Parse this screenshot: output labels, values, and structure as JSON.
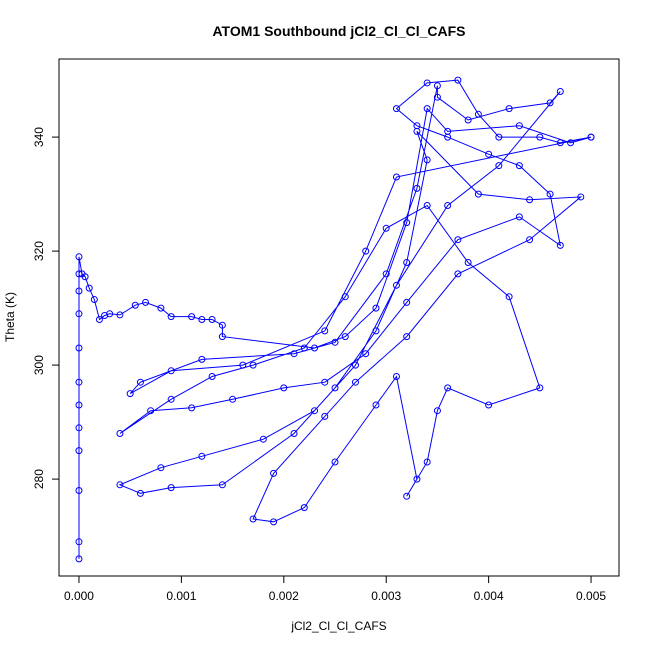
{
  "chart_data": {
    "type": "line",
    "markers": true,
    "title": "ATOM1 Southbound jCl2_Cl_Cl_CAFS",
    "x_label": "jCl2_Cl_Cl_CAFS",
    "y_label": "Theta (K)",
    "color": "#0000ff",
    "xlim": [
      -0.000195,
      0.005273
    ],
    "ylim": [
      263,
      353.7
    ],
    "xticks": [
      {
        "value": 0,
        "label": "0.000"
      },
      {
        "value": 0.001,
        "label": "0.001"
      },
      {
        "value": 0.002,
        "label": "0.002"
      },
      {
        "value": 0.003,
        "label": "0.003"
      },
      {
        "value": 0.004,
        "label": "0.004"
      },
      {
        "value": 0.005,
        "label": "0.005"
      }
    ],
    "yticks": [
      280,
      300,
      320,
      340
    ],
    "x": [
      0,
      0,
      0,
      0,
      0,
      0,
      0,
      0,
      0,
      0,
      0,
      0,
      3e-05,
      6e-05,
      0.0001,
      0.00015,
      0.0002,
      0.00025,
      0.0003,
      0.0004,
      0.00055,
      0.00065,
      0.0008,
      0.0009,
      0.0011,
      0.0012,
      0.0013,
      0.0014,
      0.0014,
      0.0023,
      0.0026,
      0.0029,
      0.0032,
      0.0034,
      0.0036,
      0.0043,
      0.0048,
      0.005,
      0.0031,
      0.0028,
      0.0024,
      0.0016,
      0.0009,
      0.0005,
      0.0006,
      0.0012,
      0.0021,
      0.0025,
      0.003,
      0.0033,
      0.0035,
      0.0035,
      0.0038,
      0.0042,
      0.0046,
      0.0047,
      0.0041,
      0.0036,
      0.0031,
      0.0027,
      0.0023,
      0.0018,
      0.0012,
      0.0008,
      0.0004,
      0.0006,
      0.0009,
      0.0014,
      0.0021,
      0.0025,
      0.0029,
      0.0032,
      0.0034,
      0.0033,
      0.0039,
      0.0044,
      0.0049,
      0.0044,
      0.0037,
      0.0032,
      0.0027,
      0.0024,
      0.0019,
      0.0017,
      0.0019,
      0.0022,
      0.0025,
      0.0029,
      0.0031,
      0.0033,
      0.0032,
      0.0034,
      0.0035,
      0.0036,
      0.004,
      0.0045,
      0.0042,
      0.0038,
      0.0034,
      0.003,
      0.0026,
      0.0022,
      0.0017,
      0.0013,
      0.0009,
      0.0004,
      0.0007,
      0.0011,
      0.0015,
      0.002,
      0.0024,
      0.0028,
      0.0032,
      0.0037,
      0.0043,
      0.0047,
      0.0046,
      0.0043,
      0.004,
      0.0036,
      0.0033,
      0.0031,
      0.0034,
      0.0037,
      0.0039,
      0.0041,
      0.0045,
      0.0047,
      0.005
    ],
    "values": [
      266,
      269,
      278,
      285,
      289,
      293,
      297,
      303,
      309,
      313,
      316,
      319,
      316,
      315.5,
      313.5,
      311.5,
      308,
      308.7,
      309,
      308.8,
      310.5,
      311,
      310,
      308.5,
      308.5,
      308,
      308,
      307,
      305,
      303,
      305,
      310,
      325,
      345,
      341,
      342,
      339,
      340,
      333,
      320,
      306,
      300,
      299,
      295,
      297,
      301,
      302,
      304,
      316,
      331,
      349,
      347,
      343,
      345,
      346,
      348,
      335,
      328,
      314,
      300,
      292,
      287,
      284,
      282,
      279,
      277.5,
      278.5,
      279,
      288,
      296,
      306,
      318,
      336,
      341,
      330,
      329,
      329.5,
      322,
      316,
      305,
      297,
      291,
      281,
      273,
      272.5,
      275,
      283,
      293,
      298,
      280,
      277,
      283,
      292,
      296,
      293,
      296,
      312,
      318,
      328,
      324,
      312,
      303,
      300,
      298,
      294,
      288,
      292,
      292.5,
      294,
      296,
      297,
      302,
      311,
      322,
      326,
      321,
      330,
      335,
      337,
      340,
      342,
      345,
      349.5,
      350,
      344,
      340,
      340,
      339,
      340
    ]
  }
}
